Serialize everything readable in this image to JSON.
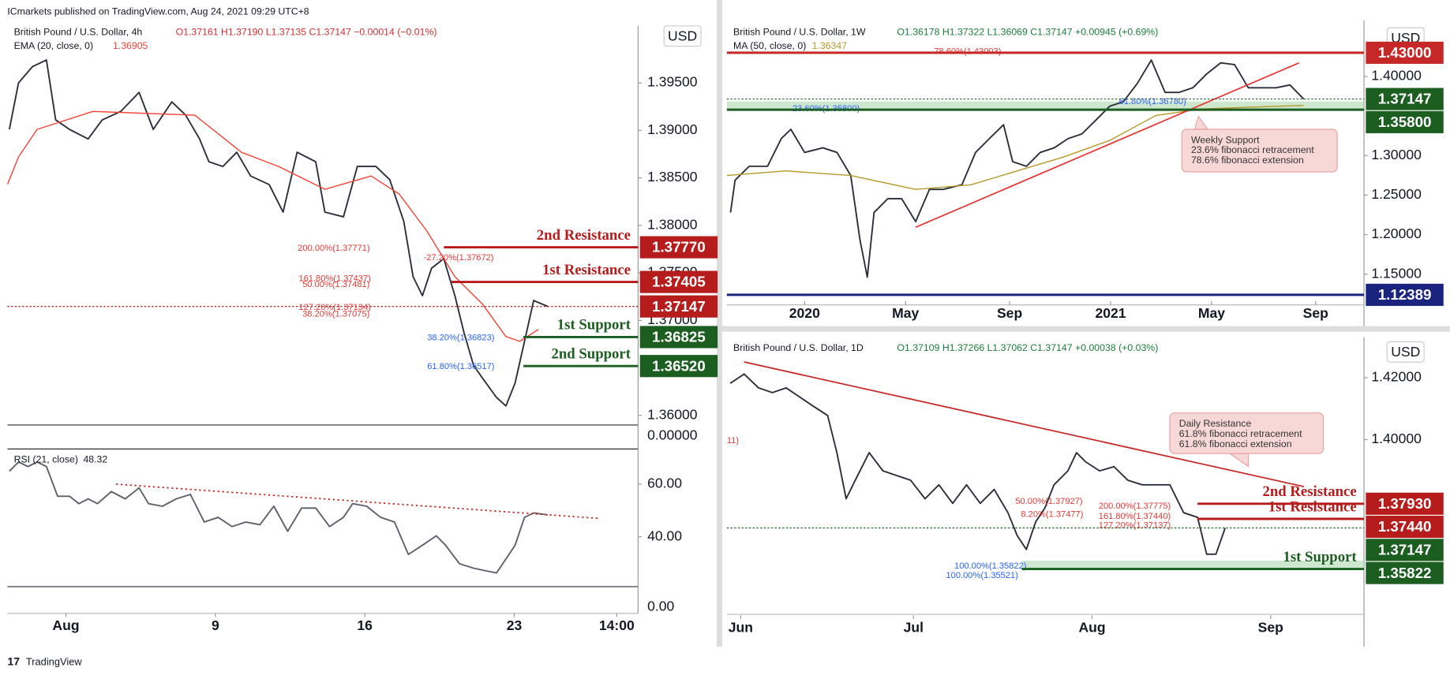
{
  "header": "ICmarkets published on TradingView.com, Aug 24, 2021 09:29 UTC+8",
  "footer": "TradingView",
  "chart_data": [
    {
      "type": "line",
      "title": "British Pound / U.S. Dollar, 4h",
      "ohlc": "O1.37161 H1.37190 L1.37135 C1.37147 −0.00014 (−0.01%)",
      "ohlc_color": "#d32f2f",
      "currency": "USD",
      "empty_pane_label": "0.00000",
      "xlim": [
        -0.74,
        28.8
      ],
      "xticks": [
        {
          "value": 2,
          "label": "Aug"
        },
        9,
        16,
        23,
        {
          "value": 27.8,
          "label": "14:00"
        }
      ],
      "ylim": [
        1.359,
        1.401
      ],
      "yticks": [
        {
          "value": 1.395,
          "label": "1.39500"
        },
        {
          "value": 1.39,
          "label": "1.39000"
        },
        {
          "value": 1.385,
          "label": "1.38500"
        },
        {
          "value": 1.38,
          "label": "1.38000"
        },
        {
          "value": 1.375,
          "label": "1.37500"
        },
        {
          "value": 1.37,
          "label": "1.37000"
        },
        {
          "value": 1.36,
          "label": "1.36000"
        }
      ],
      "series": [
        {
          "color": "#2a2e39",
          "x": [
            -0.65,
            -0.22,
            0.43,
            1.09,
            1.52,
            2.17,
            3.04,
            3.7,
            4.57,
            5.43,
            6.09,
            6.96,
            7.61,
            8.26,
            8.7,
            9.35,
            10,
            10.65,
            11.52,
            12.17,
            12.83,
            13.7,
            14.13,
            15,
            15.65,
            16.52,
            17.17,
            17.83,
            18.26,
            18.7,
            19.13,
            19.7,
            20.22,
            20.65,
            21.09,
            21.52,
            22.17,
            22.61,
            23.04,
            23.48,
            23.91,
            24.57
          ],
          "values": [
            1.3901,
            1.395,
            1.3967,
            1.3974,
            1.3911,
            1.3901,
            1.3891,
            1.3911,
            1.392,
            1.394,
            1.3901,
            1.393,
            1.3916,
            1.3891,
            1.3867,
            1.3862,
            1.3877,
            1.3852,
            1.3843,
            1.3814,
            1.3877,
            1.3867,
            1.3814,
            1.3809,
            1.3862,
            1.3862,
            1.3848,
            1.3804,
            1.3746,
            1.3726,
            1.3755,
            1.3765,
            1.3726,
            1.3687,
            1.3653,
            1.3639,
            1.3619,
            1.361,
            1.3634,
            1.3678,
            1.3721,
            1.37147
          ]
        },
        {
          "name": "EMA (20, close, 0)",
          "last": 1.36905,
          "color": "#f44336",
          "x": [
            -0.74,
            -0.22,
            0.65,
            3.26,
            8.04,
            10.22,
            11.96,
            14.13,
            16.3,
            17.61,
            18.91,
            20.22,
            21.52,
            22.61,
            23.26,
            24.13
          ],
          "values": [
            1.3843,
            1.3872,
            1.3901,
            1.392,
            1.3916,
            1.3877,
            1.3862,
            1.3838,
            1.3852,
            1.3833,
            1.3794,
            1.3746,
            1.3717,
            1.3683,
            1.3678,
            1.36905
          ]
        }
      ],
      "levels": [
        {
          "name": "2nd Resistance",
          "value": 1.3777,
          "label": "1.37770",
          "color": "#b71c1c"
        },
        {
          "name": "1st Resistance",
          "value": 1.37405,
          "color": "#b71c1c"
        },
        {
          "value": 1.37147,
          "color": "#b71c1c",
          "line_style": "dotted"
        },
        {
          "name": "1st Support",
          "value": 1.36825,
          "color": "#1b5e20"
        },
        {
          "name": "2nd Support",
          "value": 1.3652,
          "label": "1.36520",
          "color": "#1b5e20"
        }
      ],
      "annotations": [
        "200.00%(1.37771)",
        "-27.20%(1.37672)",
        "161.80%(1.37437)",
        "50.00%(1.37481)",
        "127.20%(1.37134)",
        "38.20%(1.37075)",
        "38.20%(1.36823)",
        "61.80%(1.36517)"
      ]
    },
    {
      "type": "line",
      "title": "RSI (21, close)",
      "empty_pane_label": "0.00",
      "xlim": [
        -0.74,
        28.8
      ],
      "ylim": [
        21.1,
        73
      ],
      "yticks": [
        {
          "value": 60,
          "label": "60.00"
        },
        {
          "value": 40,
          "label": "40.00"
        }
      ],
      "series": [
        {
          "last": 48.32,
          "color": "#5d606b",
          "x": [
            -0.65,
            -0.22,
            0.22,
            0.65,
            1.09,
            1.61,
            2.17,
            2.61,
            3.04,
            3.48,
            4.13,
            4.78,
            5.43,
            5.87,
            6.52,
            7.17,
            7.83,
            8.48,
            9.13,
            9.78,
            10.43,
            11.09,
            11.74,
            12.39,
            13.04,
            13.7,
            14.35,
            15,
            15.43,
            16.09,
            16.74,
            17.39,
            18.04,
            18.7,
            19.35,
            19.78,
            20.43,
            21.09,
            21.74,
            22.17,
            22.61,
            23.04,
            23.48,
            23.91,
            24.57
          ],
          "values": [
            64.9,
            68.4,
            66.7,
            68.4,
            66.7,
            55.4,
            55.4,
            52.6,
            54.4,
            52.6,
            57.2,
            54.4,
            58.6,
            52.6,
            51.6,
            54.4,
            56.1,
            45.6,
            47.4,
            43.9,
            45.6,
            44.6,
            51.6,
            42.1,
            50.9,
            50.9,
            43.9,
            47.4,
            52.6,
            51.6,
            47.4,
            45.6,
            33.3,
            36.8,
            40.4,
            36.8,
            29.8,
            28.1,
            27,
            26.3,
            31.6,
            36.8,
            47.4,
            49.1,
            48.32
          ]
        }
      ],
      "trendline": {
        "x": [
          4.35,
          26.96
        ],
        "values": [
          60,
          47
        ],
        "color": "#c62828",
        "line_style": "dotted"
      }
    },
    {
      "type": "line",
      "title": "British Pound / U.S. Dollar, 1W",
      "ohlc": "O1.36178 H1.37322 L1.36069 C1.37147 +0.00945 (+0.69%)",
      "ohlc_color": "#1b7d3a",
      "currency": "USD",
      "xlim": [
        2019.746,
        2021.828
      ],
      "xticks": [
        2020,
        {
          "value": 2020.33,
          "label": "May"
        },
        {
          "value": 2020.67,
          "label": "Sep"
        },
        2021,
        {
          "value": 2021.33,
          "label": "May"
        },
        {
          "value": 2021.67,
          "label": "Sep"
        }
      ],
      "ylim": [
        1.1112,
        1.464
      ],
      "yticks": [
        {
          "value": 1.4,
          "label": "1.40000"
        },
        {
          "value": 1.3,
          "label": "1.30000"
        },
        {
          "value": 1.25,
          "label": "1.25000"
        },
        {
          "value": 1.2,
          "label": "1.20000"
        },
        {
          "value": 1.15,
          "label": "1.15000"
        }
      ],
      "series": [
        {
          "color": "#2a2e39",
          "x": [
            2019.758,
            2019.773,
            2019.819,
            2019.879,
            2019.924,
            2019.955,
            2020,
            2020.06,
            2020.106,
            2020.151,
            2020.181,
            2020.205,
            2020.227,
            2020.272,
            2020.317,
            2020.363,
            2020.408,
            2020.453,
            2020.514,
            2020.559,
            2020.604,
            2020.65,
            2020.68,
            2020.725,
            2020.77,
            2020.816,
            2020.861,
            2020.906,
            2020.952,
            2020.997,
            2021.042,
            2021.088,
            2021.133,
            2021.178,
            2021.224,
            2021.269,
            2021.314,
            2021.36,
            2021.405,
            2021.45,
            2021.495,
            2021.541,
            2021.586,
            2021.631
          ],
          "values": [
            1.228,
            1.2689,
            1.2864,
            1.2864,
            1.3215,
            1.3332,
            1.304,
            1.3098,
            1.304,
            1.2748,
            1.193,
            1.1463,
            1.228,
            1.2456,
            1.2456,
            1.2164,
            1.2572,
            1.2572,
            1.2631,
            1.304,
            1.3215,
            1.339,
            1.2923,
            1.2864,
            1.304,
            1.3098,
            1.3215,
            1.3273,
            1.3449,
            1.3624,
            1.3682,
            1.3916,
            1.4208,
            1.3799,
            1.3799,
            1.3857,
            1.4033,
            1.4173,
            1.415,
            1.3857,
            1.3857,
            1.3857,
            1.3893,
            1.37147
          ]
        },
        {
          "name": "MA (50, close, 0)",
          "last": 1.36347,
          "color": "#b59a2a",
          "x": [
            2019.746,
            2019.94,
            2020.151,
            2020.363,
            2020.544,
            2020.695,
            2020.846,
            2020.997,
            2021.148,
            2021.299,
            2021.45,
            2021.631
          ],
          "values": [
            1.2748,
            1.2806,
            1.2748,
            1.2572,
            1.2631,
            1.2806,
            1.2981,
            1.3192,
            1.3507,
            1.3589,
            1.3612,
            1.36347
          ]
        }
      ],
      "trendline": {
        "x": [
          2020.363,
          2021.616
        ],
        "values": [
          1.2093,
          1.4173
        ],
        "color": "#e53935"
      },
      "levels": [
        {
          "value": 1.43,
          "label": "1.43000",
          "color": "#c62828"
        },
        {
          "value": 1.37147,
          "color": "#1b5e20",
          "line_style": "dotted"
        },
        {
          "value": 1.358,
          "label": "1.35800",
          "color": "#1b5e20"
        },
        {
          "value": 1.12389,
          "color": "#1a237e"
        }
      ],
      "annotations": [
        "78.60%(1.43003)",
        "23.60%(1.35800)",
        "61.80%(1.36780)"
      ],
      "callout": [
        "Weekly Support",
        "23.6% fibonacci retracement",
        "78.6% fibonacci extension"
      ]
    },
    {
      "type": "line",
      "title": "British Pound / U.S. Dollar, 1D",
      "ohlc": "O1.37109 H1.37266 L1.37062 C1.37147 +0.00038 (+0.03%)",
      "ohlc_color": "#1b7d3a",
      "currency": "USD",
      "xlim": [
        149.6,
        260.2
      ],
      "xticks": [
        {
          "value": 152,
          "label": "Jun"
        },
        {
          "value": 182,
          "label": "Jul"
        },
        {
          "value": 213,
          "label": "Aug"
        },
        {
          "value": 244,
          "label": "Sep"
        }
      ],
      "ylim": [
        1.3361,
        1.4331
      ],
      "yticks": [
        {
          "value": 1.42,
          "label": "1.42000"
        },
        {
          "value": 1.4,
          "label": "1.40000"
        }
      ],
      "series": [
        {
          "color": "#2a2e39",
          "x": [
            150.2,
            152.6,
            155.1,
            157.5,
            159.9,
            162.3,
            164.7,
            167.1,
            168.7,
            170.3,
            171.9,
            174.3,
            176.7,
            179.1,
            181.5,
            184,
            186.4,
            188.8,
            191.2,
            193.6,
            196,
            198.4,
            200,
            201.6,
            203.2,
            204.8,
            206.4,
            208.8,
            210.3,
            211.9,
            214.3,
            216.8,
            219.2,
            221.7,
            224.1,
            226.5,
            228.9,
            231.3,
            232.9,
            234.5,
            236.1
          ],
          "values": [
            1.4182,
            1.4212,
            1.4167,
            1.4152,
            1.4167,
            1.4137,
            1.4107,
            1.4078,
            1.3958,
            1.3809,
            1.3869,
            1.3958,
            1.3899,
            1.3884,
            1.3869,
            1.3809,
            1.3854,
            1.3794,
            1.3854,
            1.3794,
            1.3839,
            1.3764,
            1.369,
            1.3645,
            1.3734,
            1.3779,
            1.3854,
            1.3899,
            1.3958,
            1.3928,
            1.3899,
            1.3913,
            1.3869,
            1.3854,
            1.3854,
            1.3854,
            1.3764,
            1.3749,
            1.363,
            1.363,
            1.37147
          ]
        }
      ],
      "trendline": {
        "x": [
          152.6,
          249.8
        ],
        "values": [
          1.4251,
          1.3848
        ],
        "color": "#c62828"
      },
      "levels": [
        {
          "name": "2nd Resistance",
          "value": 1.3793,
          "label": "1.37930",
          "color": "#b71c1c"
        },
        {
          "name": "1st Resistance",
          "value": 1.3744,
          "label": "1.37440",
          "color": "#b71c1c"
        },
        {
          "value": 1.37147,
          "color": "#1b5e20",
          "line_style": "dotted"
        },
        {
          "name": "1st Support",
          "value": 1.35822,
          "color": "#1b5e20"
        }
      ],
      "annotations": [
        "11)",
        "50.00%(1.37927)",
        "8.20%(1.37477)",
        "200.00%(1.37775)",
        "161.80%(1.37440)",
        "127.20%(1.37137)",
        "100.00%(1.35822)",
        "100.00%(1.35521)"
      ],
      "callout": [
        "Daily Resistance",
        "61.8% fibonacci retracement",
        "61.8% fibonacci extension"
      ]
    }
  ]
}
